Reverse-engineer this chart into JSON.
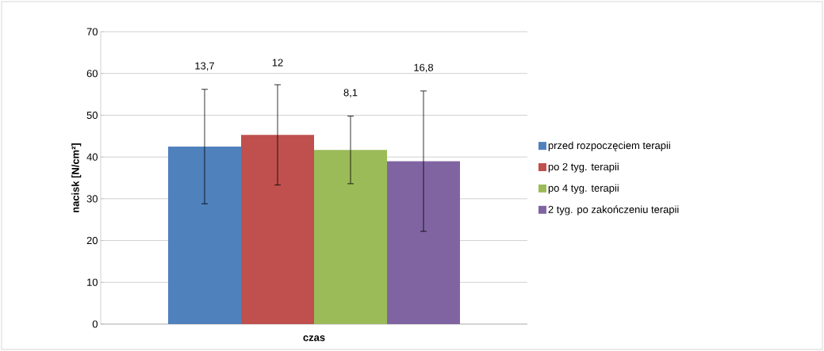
{
  "chart_data": {
    "type": "bar",
    "xlabel": "czas",
    "ylabel": "nacisk [N/cm²]",
    "categories": [
      null
    ],
    "series": [
      {
        "name": "przed rozpoczęciem terapii",
        "color": "#4f81bd",
        "values": [
          42.5
        ],
        "errors": [
          13.7
        ]
      },
      {
        "name": "po 2 tyg. terapii",
        "color": "#c0504d",
        "values": [
          45.3
        ],
        "errors": [
          12
        ]
      },
      {
        "name": "po 4 tyg. terapii",
        "color": "#9bbb59",
        "values": [
          41.7
        ],
        "errors": [
          8.1
        ]
      },
      {
        "name": "2 tyg. po zakończeniu terapii",
        "color": "#8064a2",
        "values": [
          39.0
        ],
        "errors": [
          16.8
        ]
      }
    ],
    "annotations": [
      "13,7",
      "12",
      "8,1",
      "16,8"
    ],
    "ylim": [
      0,
      70
    ],
    "yticks": [
      0,
      10,
      20,
      30,
      40,
      50,
      60,
      70
    ],
    "grid": "y",
    "legend": "right"
  }
}
